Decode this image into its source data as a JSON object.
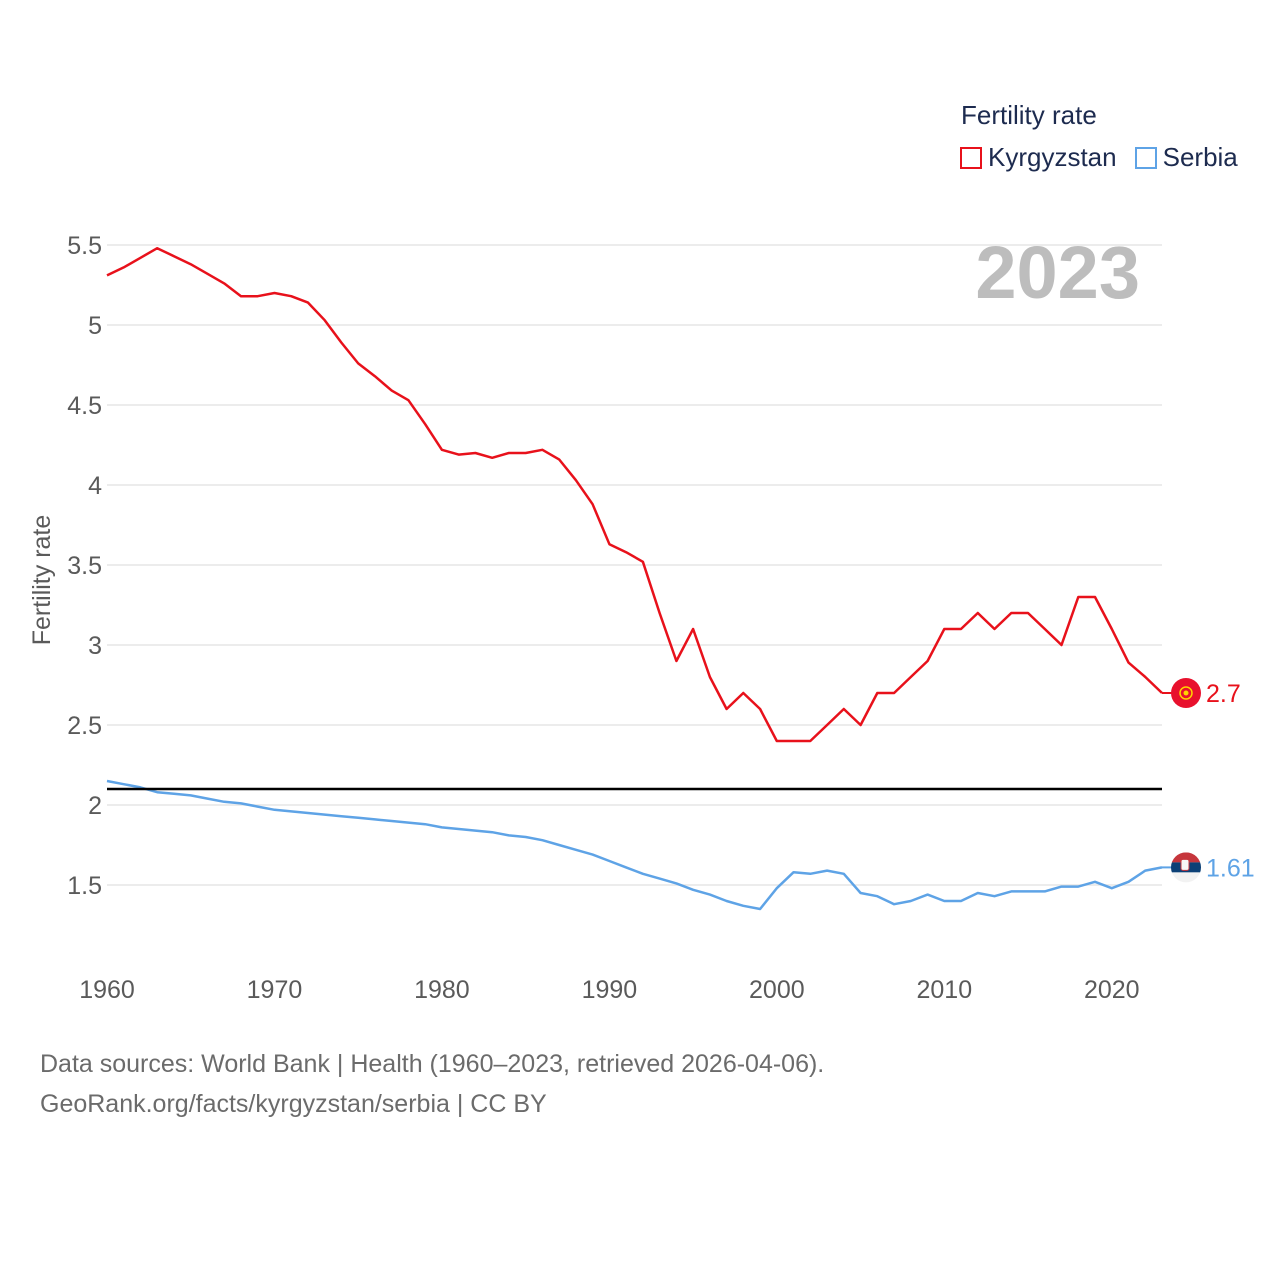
{
  "legend": {
    "title": "Fertility rate",
    "items": [
      {
        "label": "Kyrgyzstan",
        "color": "#e8111b"
      },
      {
        "label": "Serbia",
        "color": "#5ea3e6"
      }
    ]
  },
  "footer": {
    "line1": "Data sources: World Bank | Health (1960–2023, retrieved 2026-04-06).",
    "line2": "GeoRank.org/facts/kyrgyzstan/serbia | CC BY"
  },
  "chart_data": {
    "type": "line",
    "year_label": "2023",
    "ylabel": "Fertility rate",
    "xlim": [
      1960,
      2023
    ],
    "ylim": [
      1.05,
      5.6
    ],
    "x_ticks": [
      1960,
      1970,
      1980,
      1990,
      2000,
      2010,
      2020
    ],
    "y_ticks": [
      1.5,
      2,
      2.5,
      3,
      3.5,
      4,
      4.5,
      5,
      5.5
    ],
    "y_tick_labels": [
      "1.5",
      "2",
      "2.5",
      "3",
      "3.5",
      "4",
      "4.5",
      "5",
      "5.5"
    ],
    "reference_line": {
      "value": 2.1,
      "color": "#000000"
    },
    "x": [
      1960,
      1961,
      1962,
      1963,
      1964,
      1965,
      1966,
      1967,
      1968,
      1969,
      1970,
      1971,
      1972,
      1973,
      1974,
      1975,
      1976,
      1977,
      1978,
      1979,
      1980,
      1981,
      1982,
      1983,
      1984,
      1985,
      1986,
      1987,
      1988,
      1989,
      1990,
      1991,
      1992,
      1993,
      1994,
      1995,
      1996,
      1997,
      1998,
      1999,
      2000,
      2001,
      2002,
      2003,
      2004,
      2005,
      2006,
      2007,
      2008,
      2009,
      2010,
      2011,
      2012,
      2013,
      2014,
      2015,
      2016,
      2017,
      2018,
      2019,
      2020,
      2021,
      2022,
      2023
    ],
    "series": [
      {
        "name": "Kyrgyzstan",
        "color": "#e8111b",
        "end_label": "2.7",
        "values": [
          5.31,
          5.36,
          5.42,
          5.48,
          5.43,
          5.38,
          5.32,
          5.26,
          5.18,
          5.18,
          5.2,
          5.18,
          5.14,
          5.03,
          4.89,
          4.76,
          4.68,
          4.59,
          4.53,
          4.38,
          4.22,
          4.19,
          4.2,
          4.17,
          4.2,
          4.2,
          4.22,
          4.16,
          4.03,
          3.88,
          3.63,
          3.58,
          3.52,
          3.2,
          2.9,
          3.1,
          2.8,
          2.6,
          2.7,
          2.6,
          2.4,
          2.4,
          2.4,
          2.5,
          2.6,
          2.5,
          2.7,
          2.7,
          2.8,
          2.9,
          3.1,
          3.1,
          3.2,
          3.1,
          3.2,
          3.2,
          3.1,
          3.0,
          3.3,
          3.3,
          3.1,
          2.89,
          2.8,
          2.7
        ]
      },
      {
        "name": "Serbia",
        "color": "#5ea3e6",
        "end_label": "1.61",
        "values": [
          2.15,
          2.13,
          2.11,
          2.08,
          2.07,
          2.06,
          2.04,
          2.02,
          2.01,
          1.99,
          1.97,
          1.96,
          1.95,
          1.94,
          1.93,
          1.92,
          1.91,
          1.9,
          1.89,
          1.88,
          1.86,
          1.85,
          1.84,
          1.83,
          1.81,
          1.8,
          1.78,
          1.75,
          1.72,
          1.69,
          1.65,
          1.61,
          1.57,
          1.54,
          1.51,
          1.47,
          1.44,
          1.4,
          1.37,
          1.35,
          1.48,
          1.58,
          1.57,
          1.59,
          1.57,
          1.45,
          1.43,
          1.38,
          1.4,
          1.44,
          1.4,
          1.4,
          1.45,
          1.43,
          1.46,
          1.46,
          1.46,
          1.49,
          1.49,
          1.52,
          1.48,
          1.52,
          1.59,
          1.61
        ]
      }
    ]
  }
}
